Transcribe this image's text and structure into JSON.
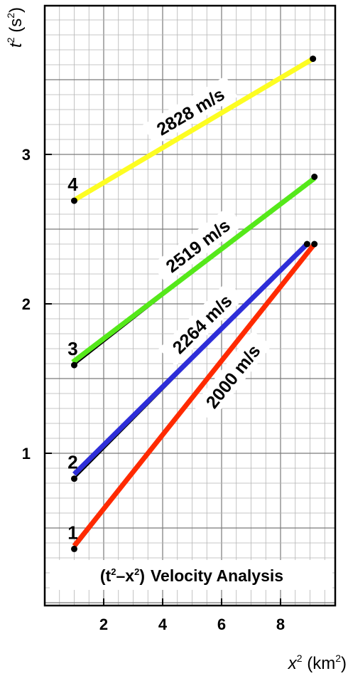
{
  "chart_data": {
    "type": "line",
    "title": "Velocity Analysis",
    "title_prefix": "(t",
    "title_sup1": "2",
    "title_mid": "–x",
    "title_sup2": "2",
    "title_suffix": ")",
    "xlabel": "x",
    "xlabel_sup": "2",
    "xlabel_units": " (km",
    "xlabel_units_sup": "2",
    "xlabel_close": ")",
    "ylabel": "t",
    "ylabel_sup": "2",
    "ylabel_units": " (s",
    "ylabel_units_sup": "2",
    "ylabel_close": ")",
    "xlim": [
      -0.8,
      10.6
    ],
    "ylim": [
      0,
      3.95
    ],
    "xticks": [
      2,
      4,
      6,
      8
    ],
    "yticks": [
      1,
      2,
      3
    ],
    "grid": true,
    "series": [
      {
        "name": "2000 m/s",
        "point_label": "1",
        "color": "#ff2a00",
        "line_x": [
          1,
          9.15
        ],
        "line_y": [
          0.38,
          2.4
        ],
        "x": [
          1,
          9.15
        ],
        "y": [
          0.36,
          2.4
        ]
      },
      {
        "name": "2264 m/s",
        "point_label": "2",
        "color": "#2e2ed8",
        "line_x": [
          1,
          8.9
        ],
        "line_y": [
          0.86,
          2.4
        ],
        "x": [
          1,
          8.9
        ],
        "y": [
          0.83,
          2.4
        ]
      },
      {
        "name": "2519 m/s",
        "point_label": "3",
        "color": "#55e81a",
        "line_x": [
          0.95,
          9.15
        ],
        "line_y": [
          1.61,
          2.84
        ],
        "x": [
          1,
          9.15
        ],
        "y": [
          1.59,
          2.85
        ]
      },
      {
        "name": "2828 m/s",
        "point_label": "4",
        "color": "#fdfd22",
        "line_x": [
          1.05,
          9.1
        ],
        "line_y": [
          2.7,
          3.64
        ],
        "x": [
          1,
          9.1
        ],
        "y": [
          2.69,
          3.64
        ]
      }
    ]
  }
}
